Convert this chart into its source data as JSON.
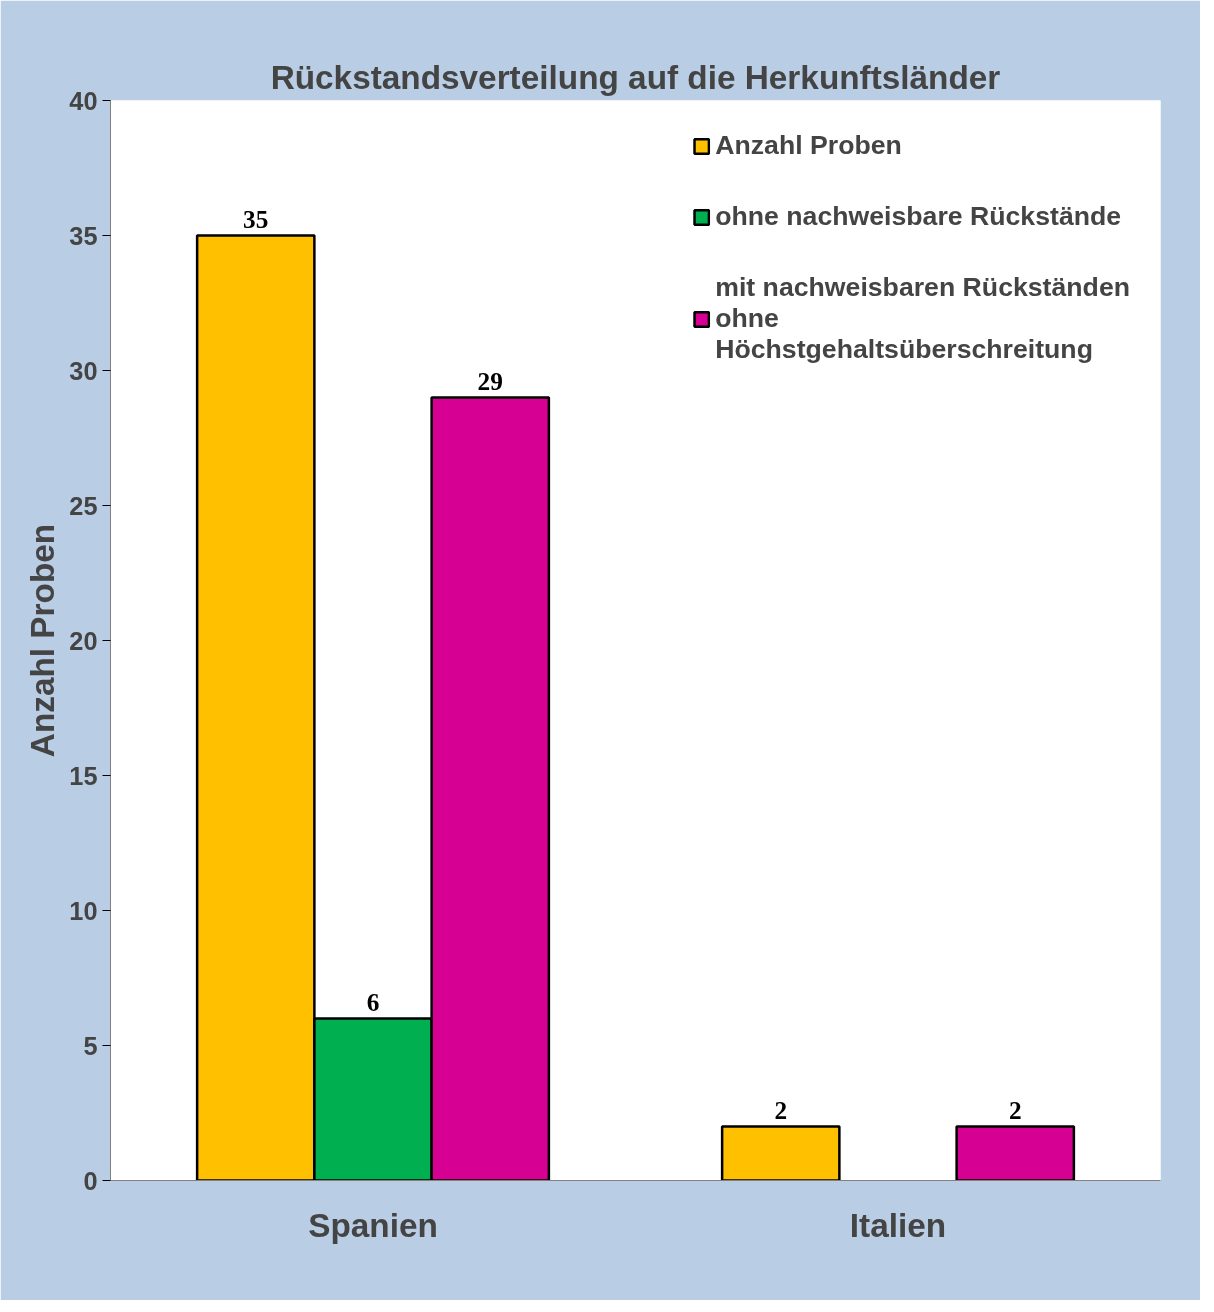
{
  "chart_data": {
    "type": "bar",
    "title": "Rückstandsverteilung auf die Herkunftsländer",
    "ylabel": "Anzahl Proben",
    "categories": [
      "Spanien",
      "Italien"
    ],
    "series": [
      {
        "name": "Anzahl Proben",
        "color": "#ffc000",
        "values": [
          35,
          2
        ]
      },
      {
        "name": "ohne nachweisbare Rückstände",
        "color": "#00b050",
        "values": [
          6,
          null
        ]
      },
      {
        "name": "mit nachweisbaren Rückständen ohne Höchstgehaltsüberschreitung",
        "color": "#d60093",
        "values": [
          29,
          2
        ]
      }
    ],
    "ylim": [
      0,
      40
    ],
    "yticks": [
      0,
      5,
      10,
      15,
      20,
      25,
      30,
      35,
      40
    ],
    "data_labels": true,
    "legend": "top right",
    "grid": false
  }
}
